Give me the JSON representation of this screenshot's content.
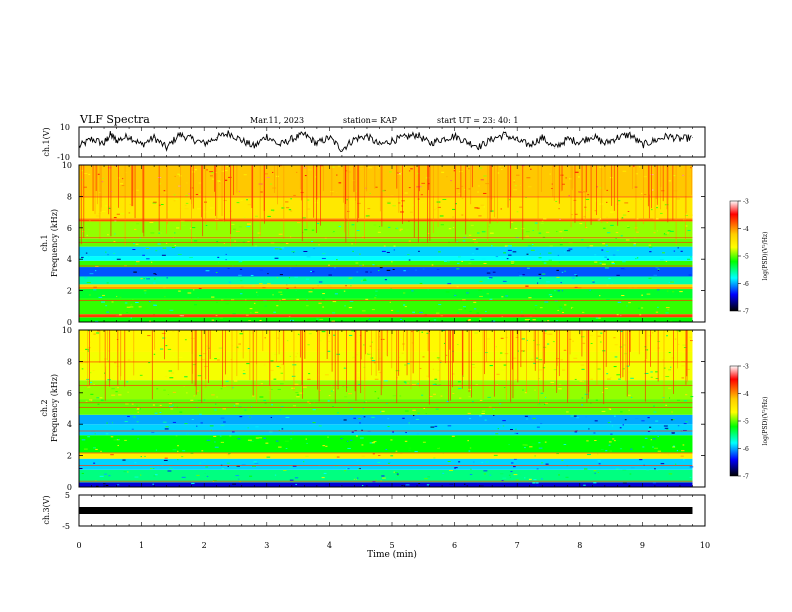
{
  "header": {
    "title": "VLF Spectra",
    "date": "Mar.11, 2023",
    "station": "station= KAP",
    "start_time": "start  UT  =   23: 40: 1"
  },
  "chart_data": [
    {
      "type": "line",
      "ylabel": "ch.1(V)",
      "ylim": [
        -10,
        10
      ],
      "yticks": [
        "10",
        "-10"
      ],
      "xlim": [
        0,
        10
      ],
      "series": [
        {
          "color": "#000000",
          "x": [
            0.0,
            0.2,
            0.4,
            0.5,
            0.6,
            0.8,
            1.0,
            1.2,
            1.4,
            1.6,
            1.8,
            2.0,
            2.2,
            2.4,
            2.6,
            2.8,
            3.0,
            3.2,
            3.4,
            3.6,
            3.8,
            4.0,
            4.2,
            4.4,
            4.6,
            4.8,
            5.0,
            5.2,
            5.4,
            5.6,
            5.8,
            6.0,
            6.2,
            6.4,
            6.6,
            6.8,
            7.0,
            7.2,
            7.4,
            7.6,
            7.8,
            8.0,
            8.2,
            8.4,
            8.6,
            8.8,
            9.0,
            9.2,
            9.4,
            9.6,
            9.8
          ],
          "values": [
            -3,
            2,
            -1,
            5,
            1,
            4,
            -2,
            3,
            -4,
            5,
            2,
            -1,
            3,
            6,
            1,
            -3,
            4,
            -2,
            2,
            5,
            -1,
            3,
            -5,
            2,
            4,
            -2,
            1,
            3,
            5,
            -1,
            2,
            4,
            0,
            -3,
            2,
            5,
            1,
            -2,
            3,
            -4,
            2,
            0,
            4,
            -1,
            3,
            5,
            -2,
            1,
            4,
            2,
            3
          ]
        }
      ]
    },
    {
      "type": "heatmap",
      "ylabel": "ch.1\nFrequency (kHz)",
      "ylim": [
        0,
        10
      ],
      "yticks": [
        "0",
        "2",
        "4",
        "6",
        "8",
        "10"
      ],
      "xlim": [
        0,
        10
      ],
      "colorbar": {
        "min": -7,
        "max": -3,
        "ticks": [
          "-3",
          "-4",
          "-5",
          "-6",
          "-7"
        ],
        "label": "log(PSD)(V²/Hz)"
      },
      "level_bands_khz": [
        {
          "from": 0.0,
          "to": 0.3,
          "level": -5.2
        },
        {
          "from": 0.3,
          "to": 0.5,
          "level": -3.6
        },
        {
          "from": 0.5,
          "to": 1.5,
          "level": -5.1
        },
        {
          "from": 1.5,
          "to": 2.1,
          "level": -5.3
        },
        {
          "from": 2.1,
          "to": 2.4,
          "level": -4.2
        },
        {
          "from": 2.4,
          "to": 2.9,
          "level": -5.6
        },
        {
          "from": 2.9,
          "to": 3.5,
          "level": -6.2
        },
        {
          "from": 3.5,
          "to": 3.9,
          "level": -5.1
        },
        {
          "from": 3.9,
          "to": 4.2,
          "level": -5.8
        },
        {
          "from": 4.2,
          "to": 4.8,
          "level": -5.9
        },
        {
          "from": 4.8,
          "to": 5.3,
          "level": -5.0
        },
        {
          "from": 5.3,
          "to": 6.4,
          "level": -4.9
        },
        {
          "from": 6.4,
          "to": 6.6,
          "level": -3.8
        },
        {
          "from": 6.6,
          "to": 8.0,
          "level": -4.4
        },
        {
          "from": 8.0,
          "to": 10.0,
          "level": -4.0
        }
      ]
    },
    {
      "type": "heatmap",
      "ylabel": "ch.2\nFrequency (kHz)",
      "ylim": [
        0,
        10
      ],
      "yticks": [
        "0",
        "2",
        "4",
        "6",
        "8",
        "10"
      ],
      "xlim": [
        0,
        10
      ],
      "colorbar": {
        "min": -7,
        "max": -3,
        "ticks": [
          "-3",
          "-4",
          "-5",
          "-6",
          "-7"
        ],
        "label": "log(PSD)(V²/Hz)"
      },
      "level_bands_khz": [
        {
          "from": 0.0,
          "to": 0.3,
          "level": -6.5
        },
        {
          "from": 0.3,
          "to": 1.1,
          "level": -5.5
        },
        {
          "from": 1.1,
          "to": 1.8,
          "level": -5.9
        },
        {
          "from": 1.8,
          "to": 2.2,
          "level": -4.5
        },
        {
          "from": 2.2,
          "to": 3.3,
          "level": -5.2
        },
        {
          "from": 3.3,
          "to": 4.0,
          "level": -5.9
        },
        {
          "from": 4.0,
          "to": 4.6,
          "level": -6.0
        },
        {
          "from": 4.6,
          "to": 5.6,
          "level": -5.0
        },
        {
          "from": 5.6,
          "to": 6.8,
          "level": -4.9
        },
        {
          "from": 6.8,
          "to": 8.6,
          "level": -4.7
        },
        {
          "from": 8.6,
          "to": 10.0,
          "level": -4.6
        }
      ]
    },
    {
      "type": "line",
      "ylabel": "ch.3(V)",
      "ylim": [
        -5,
        5
      ],
      "yticks": [
        "5",
        "-5"
      ],
      "xlim": [
        0,
        10
      ],
      "xticks": [
        "0",
        "1",
        "2",
        "3",
        "4",
        "5",
        "6",
        "7",
        "8",
        "9",
        "10"
      ],
      "xlabel": "Time (min)",
      "series": [
        {
          "color": "#000000",
          "x": [
            0,
            9.8
          ],
          "values": [
            -1,
            -1
          ]
        }
      ]
    }
  ]
}
